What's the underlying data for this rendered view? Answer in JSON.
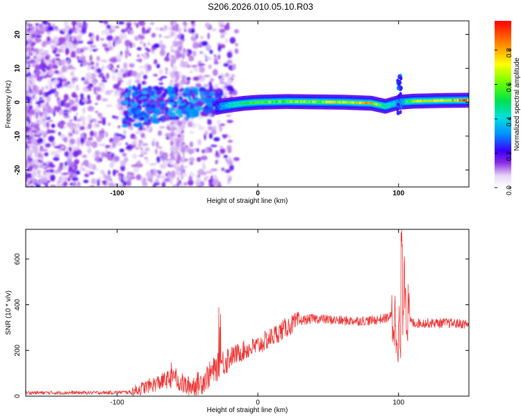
{
  "title": "S206.2026.010.05.10.R03",
  "chart_data": [
    {
      "type": "heatmap",
      "xlabel": "Height of straight line (km)",
      "ylabel": "Frequency (Hz)",
      "xlim": [
        -165,
        150
      ],
      "ylim": [
        -25,
        24
      ],
      "xticks": [
        -100,
        0,
        100
      ],
      "yticks": [
        -20,
        -10,
        0,
        10,
        20
      ],
      "colorbar": {
        "label": "Normalized spectral amplitude",
        "range": [
          0,
          0.97
        ],
        "ticks": [
          0.0,
          0.2,
          0.4,
          0.6,
          0.8
        ]
      },
      "ridge": {
        "description_points_x_km": [
          -30,
          -20,
          -10,
          0,
          20,
          40,
          60,
          80,
          90,
          100,
          110,
          130,
          150
        ],
        "frequency_hz": [
          -1.5,
          -0.8,
          -0.3,
          0,
          0.2,
          0.1,
          0,
          -0.3,
          -1.2,
          0,
          0.3,
          0.5,
          0.6
        ],
        "amplitude": [
          0.25,
          0.45,
          0.55,
          0.6,
          0.65,
          0.7,
          0.75,
          0.8,
          0.5,
          0.3,
          0.75,
          0.8,
          0.9
        ]
      }
    },
    {
      "type": "line",
      "xlabel": "Height of straight line (km)",
      "ylabel": "SNR (10 * v/v)",
      "xlim": [
        -165,
        150
      ],
      "ylim": [
        0,
        730
      ],
      "xticks": [
        -100,
        0,
        100
      ],
      "yticks": [
        0,
        200,
        400,
        600
      ],
      "series": [
        {
          "name": "SNR",
          "color": "#ee3333",
          "x": [
            -165,
            -140,
            -110,
            -90,
            -80,
            -70,
            -60,
            -50,
            -40,
            -30,
            -20,
            -10,
            0,
            10,
            20,
            30,
            40,
            60,
            80,
            90,
            95,
            100,
            102,
            104,
            106,
            110,
            120,
            135,
            150
          ],
          "values": [
            15,
            15,
            15,
            18,
            40,
            60,
            80,
            40,
            60,
            120,
            170,
            200,
            220,
            260,
            300,
            330,
            340,
            330,
            330,
            340,
            350,
            300,
            150,
            600,
            350,
            320,
            320,
            320,
            315
          ]
        }
      ]
    }
  ]
}
